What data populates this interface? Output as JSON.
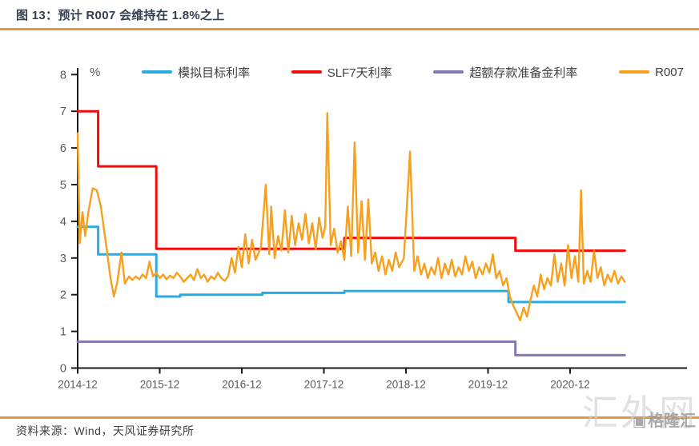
{
  "header": {
    "title": "图 13：预计 R007 会维持在 1.8%之上"
  },
  "footer": {
    "source": "资料来源：Wind，天风证券研究所"
  },
  "watermark": {
    "large": "汇外网",
    "small": "格隆汇",
    "small_icon": "▣"
  },
  "chart_data": {
    "type": "line",
    "title": "图 13：预计 R007 会维持在 1.8%之上",
    "ylabel": "%",
    "xlabel": "",
    "ylim": [
      0,
      8
    ],
    "y_ticks": [
      0,
      1,
      2,
      3,
      4,
      5,
      6,
      7,
      8
    ],
    "x_tick_labels": [
      "2014-12",
      "2015-12",
      "2016-12",
      "2017-12",
      "2018-12",
      "2019-12",
      "2020-12"
    ],
    "x_encoding": "months since 2014-12",
    "x_range_months": [
      0,
      80
    ],
    "months_per_tick": 12,
    "grid": false,
    "legend_position": "top",
    "axis_color": "#1a1a1a",
    "tick_label_color": "#595959",
    "series": [
      {
        "key": "simulated-target-rate",
        "name": "模拟目标利率",
        "color": "#29ABE2",
        "style": "step",
        "points": [
          [
            0,
            3.85
          ],
          [
            3,
            3.1
          ],
          [
            11.5,
            1.95
          ],
          [
            15,
            2.0
          ],
          [
            27,
            2.05
          ],
          [
            39,
            2.1
          ],
          [
            63,
            1.8
          ]
        ]
      },
      {
        "key": "slf-7day-rate",
        "name": "SLF7天利率",
        "color": "#F20B0B",
        "style": "step",
        "points": [
          [
            0,
            7.0
          ],
          [
            3,
            5.5
          ],
          [
            11.5,
            3.25
          ],
          [
            39,
            3.55
          ],
          [
            64,
            3.2
          ]
        ]
      },
      {
        "key": "excess-reserve-rate",
        "name": "超额存款准备金利率",
        "color": "#8778B3",
        "style": "step",
        "points": [
          [
            0,
            0.72
          ],
          [
            64,
            0.35
          ]
        ]
      },
      {
        "key": "r007",
        "name": "R007",
        "color": "#F7A01E",
        "style": "line",
        "points": [
          [
            0,
            6.4
          ],
          [
            0.3,
            3.4
          ],
          [
            0.7,
            4.25
          ],
          [
            1.1,
            3.6
          ],
          [
            1.6,
            4.3
          ],
          [
            2.2,
            4.9
          ],
          [
            2.8,
            4.85
          ],
          [
            3.4,
            4.4
          ],
          [
            4.2,
            3.3
          ],
          [
            4.8,
            2.45
          ],
          [
            5.3,
            1.95
          ],
          [
            5.8,
            2.35
          ],
          [
            6.4,
            3.15
          ],
          [
            6.9,
            2.3
          ],
          [
            7.5,
            2.5
          ],
          [
            8,
            2.4
          ],
          [
            8.5,
            2.5
          ],
          [
            9,
            2.42
          ],
          [
            9.5,
            2.55
          ],
          [
            10,
            2.45
          ],
          [
            10.5,
            2.9
          ],
          [
            11,
            2.5
          ],
          [
            11.5,
            2.6
          ],
          [
            12,
            2.45
          ],
          [
            12.5,
            2.55
          ],
          [
            13,
            2.42
          ],
          [
            13.5,
            2.52
          ],
          [
            14,
            2.45
          ],
          [
            14.5,
            2.6
          ],
          [
            15,
            2.5
          ],
          [
            15.5,
            2.35
          ],
          [
            16,
            2.45
          ],
          [
            16.5,
            2.55
          ],
          [
            17,
            2.4
          ],
          [
            17.5,
            2.7
          ],
          [
            18,
            2.45
          ],
          [
            18.5,
            2.55
          ],
          [
            19,
            2.35
          ],
          [
            19.5,
            2.5
          ],
          [
            20,
            2.42
          ],
          [
            20.5,
            2.6
          ],
          [
            21,
            2.45
          ],
          [
            21.5,
            2.38
          ],
          [
            22,
            2.5
          ],
          [
            22.5,
            3.0
          ],
          [
            23,
            2.6
          ],
          [
            23.5,
            3.3
          ],
          [
            24,
            2.75
          ],
          [
            24.5,
            3.65
          ],
          [
            25,
            2.85
          ],
          [
            25.5,
            3.5
          ],
          [
            26,
            2.95
          ],
          [
            26.8,
            3.3
          ],
          [
            27.5,
            5.0
          ],
          [
            28,
            3.1
          ],
          [
            28.3,
            4.4
          ],
          [
            28.8,
            3.0
          ],
          [
            29.3,
            3.6
          ],
          [
            29.8,
            3.2
          ],
          [
            30.3,
            4.3
          ],
          [
            30.8,
            3.15
          ],
          [
            31.3,
            4.15
          ],
          [
            31.8,
            3.35
          ],
          [
            32.3,
            3.95
          ],
          [
            32.8,
            3.5
          ],
          [
            33.3,
            4.2
          ],
          [
            33.8,
            3.4
          ],
          [
            34.3,
            3.95
          ],
          [
            34.8,
            3.25
          ],
          [
            35.3,
            4.1
          ],
          [
            35.8,
            3.55
          ],
          [
            36.2,
            3.85
          ],
          [
            36.5,
            6.95
          ],
          [
            37,
            3.35
          ],
          [
            37.5,
            3.8
          ],
          [
            38,
            3.15
          ],
          [
            38.5,
            3.45
          ],
          [
            39,
            2.95
          ],
          [
            39.5,
            4.4
          ],
          [
            40,
            3.05
          ],
          [
            40.5,
            6.15
          ],
          [
            41,
            3.15
          ],
          [
            41.5,
            4.55
          ],
          [
            42,
            2.95
          ],
          [
            42.5,
            4.6
          ],
          [
            43,
            2.85
          ],
          [
            43.5,
            3.15
          ],
          [
            44,
            2.65
          ],
          [
            44.5,
            3.05
          ],
          [
            45,
            2.55
          ],
          [
            45.5,
            2.95
          ],
          [
            46,
            2.65
          ],
          [
            46.5,
            3.15
          ],
          [
            47,
            2.75
          ],
          [
            47.7,
            3.0
          ],
          [
            48.6,
            5.9
          ],
          [
            49.2,
            2.65
          ],
          [
            49.7,
            3.05
          ],
          [
            50.2,
            2.55
          ],
          [
            50.7,
            2.85
          ],
          [
            51.2,
            2.45
          ],
          [
            51.7,
            2.75
          ],
          [
            52.2,
            2.55
          ],
          [
            52.7,
            3.0
          ],
          [
            53.2,
            2.45
          ],
          [
            53.7,
            2.85
          ],
          [
            54.2,
            2.55
          ],
          [
            54.7,
            2.95
          ],
          [
            55.2,
            2.5
          ],
          [
            55.7,
            2.75
          ],
          [
            56.2,
            2.55
          ],
          [
            56.7,
            3.05
          ],
          [
            57.2,
            2.65
          ],
          [
            57.7,
            2.9
          ],
          [
            58.2,
            2.45
          ],
          [
            58.7,
            2.75
          ],
          [
            59.2,
            2.55
          ],
          [
            59.7,
            2.85
          ],
          [
            60.2,
            2.6
          ],
          [
            60.7,
            3.1
          ],
          [
            61.2,
            2.45
          ],
          [
            61.7,
            2.65
          ],
          [
            62.2,
            2.25
          ],
          [
            62.7,
            2.45
          ],
          [
            63.2,
            1.95
          ],
          [
            63.7,
            1.7
          ],
          [
            64.2,
            1.5
          ],
          [
            64.7,
            1.3
          ],
          [
            65.2,
            1.65
          ],
          [
            65.7,
            1.4
          ],
          [
            66.2,
            1.85
          ],
          [
            66.7,
            2.25
          ],
          [
            67.2,
            1.95
          ],
          [
            67.7,
            2.55
          ],
          [
            68.2,
            2.15
          ],
          [
            68.7,
            2.45
          ],
          [
            69.2,
            2.25
          ],
          [
            69.7,
            3.1
          ],
          [
            70.2,
            2.35
          ],
          [
            70.7,
            2.85
          ],
          [
            71.2,
            2.25
          ],
          [
            71.7,
            3.35
          ],
          [
            72.2,
            2.45
          ],
          [
            72.7,
            3.05
          ],
          [
            73.2,
            2.35
          ],
          [
            73.6,
            4.85
          ],
          [
            74,
            2.3
          ],
          [
            74.5,
            2.65
          ],
          [
            75,
            2.35
          ],
          [
            75.5,
            3.2
          ],
          [
            76,
            2.45
          ],
          [
            76.5,
            2.75
          ],
          [
            77,
            2.25
          ],
          [
            77.5,
            2.55
          ],
          [
            78,
            2.35
          ],
          [
            78.5,
            2.65
          ],
          [
            79,
            2.3
          ],
          [
            79.5,
            2.5
          ],
          [
            80,
            2.35
          ]
        ]
      }
    ]
  }
}
